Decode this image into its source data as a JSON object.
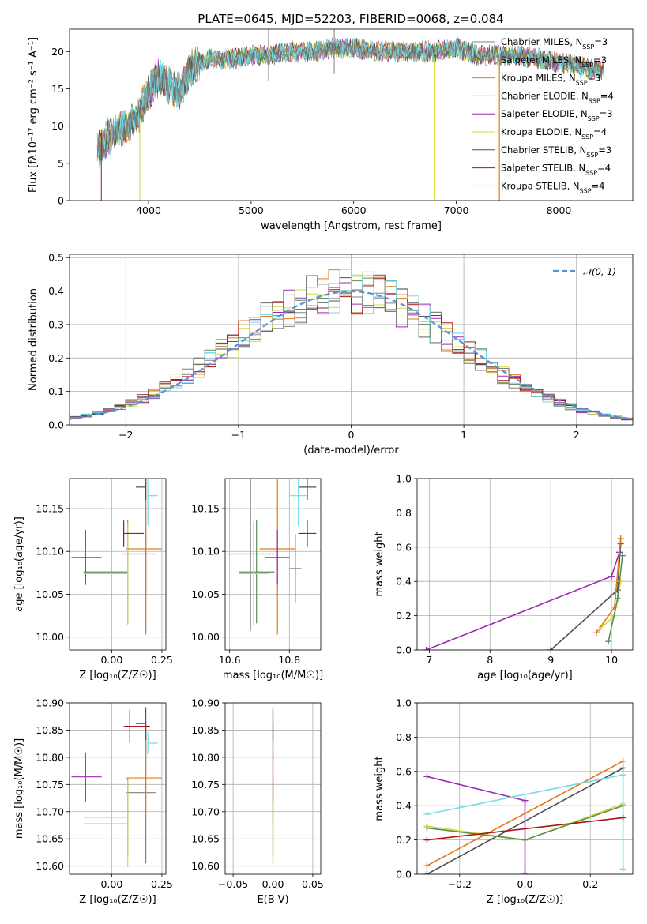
{
  "colors": [
    "#808080",
    "#808080",
    "#e07a20",
    "#5a8f5a",
    "#9b2bb0",
    "#d4dc3a",
    "#505050",
    "#aa1515",
    "#70dde6"
  ],
  "chart_data": [
    {
      "type": "line",
      "title": "PLATE=0645, MJD=52203, FIBERID=0068, z=0.084",
      "xlabel": "wavelength [Angstrom, rest frame]",
      "ylabel": "Flux [fλ10⁻¹⁷ erg cm⁻² s⁻¹ A⁻¹]",
      "xlim": [
        3230,
        8720
      ],
      "ylim": [
        0,
        23
      ],
      "xticks": [
        "4000",
        "5000",
        "6000",
        "7000",
        "8000"
      ],
      "yticks": [
        "0",
        "5",
        "10",
        "15",
        "20"
      ],
      "legend_position": "upper right",
      "legend": [
        "Chabrier MILES, N_SSP=3",
        "Salpeter MILES, N_SSP=3",
        "Kroupa MILES, N_SSP=3",
        "Chabrier ELODIE, N_SSP=4",
        "Salpeter ELODIE, N_SSP=3",
        "Kroupa ELODIE, N_SSP=4",
        "Chabrier STELIB, N_SSP=3",
        "Salpeter STELIB, N_SSP=4",
        "Kroupa STELIB, N_SSP=4"
      ],
      "spectrum_x": [
        3500,
        3600,
        3700,
        3800,
        3900,
        4000,
        4100,
        4200,
        4300,
        4400,
        4500,
        4600,
        4800,
        5000,
        5200,
        5400,
        5600,
        5800,
        6000,
        6200,
        6400,
        6600,
        6800,
        7000,
        7200,
        7400,
        7600,
        7800,
        8000,
        8200,
        8400
      ],
      "spectrum_y": [
        6.5,
        8.5,
        9.5,
        10,
        11.5,
        14.5,
        16.5,
        15.5,
        14.5,
        17.5,
        18.5,
        19,
        19,
        19.5,
        19.5,
        20,
        20,
        20.5,
        20.5,
        20,
        20,
        20,
        20,
        20.5,
        19.5,
        19.5,
        19.5,
        19,
        18.5,
        18,
        17.5
      ]
    },
    {
      "type": "bar",
      "xlabel": "(data-model)/error",
      "ylabel": "Normed distribution",
      "xlim": [
        -2.5,
        2.5
      ],
      "ylim": [
        0,
        0.51
      ],
      "xticks": [
        "−2",
        "−1",
        "0",
        "1",
        "2"
      ],
      "yticks": [
        "0.0",
        "0.1",
        "0.2",
        "0.3",
        "0.4",
        "0.5"
      ],
      "legend": [
        "𝒩(0, 1)"
      ],
      "bin_edges_start": -2.5,
      "bin_width": 0.1,
      "bin_count": 50
    },
    {
      "type": "scatter",
      "xlabel": "Z [log₁₀(Z/Z☉)]",
      "ylabel": "age  [log₁₀(age/yr)]",
      "xlim": [
        -0.21,
        0.27
      ],
      "ylim": [
        9.985,
        10.185
      ],
      "xticks": [
        "0.00",
        "0.25"
      ],
      "yticks": [
        "10.00",
        "10.05",
        "10.10",
        "10.15"
      ],
      "points": [
        {
          "x": 0.17,
          "xerr": [
            0.0,
            0.0
          ],
          "y": 10.09,
          "yerr": 0.04
        },
        {
          "x": 0.17,
          "xerr": [
            0.12,
            0.05
          ],
          "y": 10.097,
          "yerr": 0.09
        },
        {
          "x": 0.17,
          "xerr": [
            0.1,
            0.08
          ],
          "y": 10.103,
          "yerr": 0.1
        },
        {
          "x": 0.08,
          "xerr": [
            0.22,
            0.0
          ],
          "y": 10.076,
          "yerr": 0.06
        },
        {
          "x": -0.13,
          "xerr": [
            0.07,
            0.08
          ],
          "y": 10.093,
          "yerr": 0.032
        },
        {
          "x": 0.08,
          "xerr": [
            0.22,
            0.0
          ],
          "y": 10.074,
          "yerr": 0.06
        },
        {
          "x": 0.17,
          "xerr": [
            0.05,
            0.0
          ],
          "y": 10.175,
          "yerr": 0.015
        },
        {
          "x": 0.06,
          "xerr": [
            0.0,
            0.1
          ],
          "y": 10.121,
          "yerr": 0.015
        },
        {
          "x": 0.18,
          "xerr": [
            0.0,
            0.05
          ],
          "y": 10.165,
          "yerr": 0.035
        }
      ]
    },
    {
      "type": "scatter",
      "xlabel": "mass [log₁₀(M/M☉)]",
      "ylabel": "",
      "xlim": [
        10.585,
        10.905
      ],
      "ylim": [
        9.985,
        10.185
      ],
      "xticks": [
        "10.6",
        "10.8"
      ],
      "yticks": [
        "10.00",
        "10.05",
        "10.10",
        "10.15"
      ],
      "points": [
        {
          "x": 10.82,
          "xerr": 0.02,
          "y": 10.08,
          "yerr": 0.04
        },
        {
          "x": 10.67,
          "xerr": 0.08,
          "y": 10.097,
          "yerr": 0.09
        },
        {
          "x": 10.76,
          "xerr": 0.06,
          "y": 10.103,
          "yerr": 0.1
        },
        {
          "x": 10.69,
          "xerr": 0.06,
          "y": 10.076,
          "yerr": 0.06
        },
        {
          "x": 10.76,
          "xerr": 0.04,
          "y": 10.093,
          "yerr": 0.032
        },
        {
          "x": 10.68,
          "xerr": 0.05,
          "y": 10.074,
          "yerr": 0.06
        },
        {
          "x": 10.86,
          "xerr": 0.03,
          "y": 10.175,
          "yerr": 0.015
        },
        {
          "x": 10.86,
          "xerr": 0.03,
          "y": 10.121,
          "yerr": 0.015
        },
        {
          "x": 10.83,
          "xerr": 0.03,
          "y": 10.165,
          "yerr": 0.035
        }
      ]
    },
    {
      "type": "line",
      "xlabel": "age  [log₁₀(age/yr)]",
      "ylabel": "mass weight",
      "xlim": [
        6.8,
        10.35
      ],
      "ylim": [
        0,
        1.0
      ],
      "xticks": [
        "7",
        "8",
        "9",
        "10"
      ],
      "yticks": [
        "0.0",
        "0.2",
        "0.4",
        "0.6",
        "0.8",
        "1.0"
      ],
      "series": [
        {
          "x": [
            6.95,
            10.0,
            10.13
          ],
          "y": [
            0.0,
            0.43,
            0.57
          ]
        },
        {
          "x": [
            9.0,
            10.1,
            10.15
          ],
          "y": [
            0.0,
            0.35,
            0.62
          ]
        },
        {
          "x": [
            9.75,
            10.05,
            10.15
          ],
          "y": [
            0.1,
            0.25,
            0.65
          ]
        },
        {
          "x": [
            9.8,
            10.05,
            10.15
          ],
          "y": [
            0.12,
            0.2,
            0.4
          ]
        },
        {
          "x": [
            9.95,
            10.1,
            10.18
          ],
          "y": [
            0.05,
            0.3,
            0.55
          ]
        }
      ]
    },
    {
      "type": "scatter",
      "xlabel": "Z [log₁₀(Z/Z☉)]",
      "ylabel": "mass [log₁₀(M/M☉)]",
      "xlim": [
        -0.21,
        0.27
      ],
      "ylim": [
        10.585,
        10.9
      ],
      "xticks": [
        "0.00",
        "0.25"
      ],
      "yticks": [
        "10.60",
        "10.65",
        "10.70",
        "10.75",
        "10.80",
        "10.85",
        "10.90"
      ],
      "points": [
        {
          "x": 0.17,
          "xerr": [
            0.0,
            0.0
          ],
          "y": 10.82,
          "yerr": 0.02
        },
        {
          "x": 0.17,
          "xerr": [
            0.1,
            0.05
          ],
          "y": 10.735,
          "yerr": 0.13
        },
        {
          "x": 0.17,
          "xerr": [
            0.1,
            0.08
          ],
          "y": 10.762,
          "yerr": 0.08
        },
        {
          "x": 0.08,
          "xerr": [
            0.22,
            0.0
          ],
          "y": 10.69,
          "yerr": 0.07
        },
        {
          "x": -0.13,
          "xerr": [
            0.07,
            0.08
          ],
          "y": 10.764,
          "yerr": 0.045
        },
        {
          "x": 0.08,
          "xerr": [
            0.22,
            0.0
          ],
          "y": 10.678,
          "yerr": 0.08
        },
        {
          "x": 0.17,
          "xerr": [
            0.05,
            0.0
          ],
          "y": 10.862,
          "yerr": 0.03
        },
        {
          "x": 0.09,
          "xerr": [
            0.03,
            0.1
          ],
          "y": 10.857,
          "yerr": 0.03
        },
        {
          "x": 0.18,
          "xerr": [
            0.0,
            0.05
          ],
          "y": 10.826,
          "yerr": 0.02
        }
      ]
    },
    {
      "type": "scatter",
      "xlabel": "E(B-V)",
      "ylabel": "",
      "xlim": [
        -0.06,
        0.06
      ],
      "ylim": [
        10.585,
        10.9
      ],
      "xticks": [
        "−0.05",
        "0.00",
        "0.05"
      ],
      "yticks": [
        "10.60",
        "10.65",
        "10.70",
        "10.75",
        "10.80",
        "10.85",
        "10.90"
      ],
      "points": [
        {
          "x": 0.0,
          "y": 10.82,
          "yerr": 0.02
        },
        {
          "x": 0.0,
          "y": 10.735,
          "yerr": 0.13
        },
        {
          "x": 0.0,
          "y": 10.762,
          "yerr": 0.08
        },
        {
          "x": 0.0,
          "y": 10.69,
          "yerr": 0.07
        },
        {
          "x": 0.0,
          "y": 10.764,
          "yerr": 0.045
        },
        {
          "x": 0.0,
          "y": 10.678,
          "yerr": 0.08
        },
        {
          "x": 0.0,
          "y": 10.862,
          "yerr": 0.03
        },
        {
          "x": 0.0,
          "y": 10.857,
          "yerr": 0.03
        },
        {
          "x": 0.0,
          "y": 10.826,
          "yerr": 0.02
        }
      ]
    },
    {
      "type": "line",
      "xlabel": "Z [log₁₀(Z/Z☉)]",
      "ylabel": "mass weight",
      "xlim": [
        -0.33,
        0.33
      ],
      "ylim": [
        0,
        1.0
      ],
      "xticks": [
        "−0.2",
        "0.0",
        "0.2"
      ],
      "yticks": [
        "0.0",
        "0.2",
        "0.4",
        "0.6",
        "0.8",
        "1.0"
      ],
      "series": [
        {
          "x": [
            -0.3,
            0.0,
            0.0
          ],
          "y": [
            0.57,
            0.43,
            0.0
          ]
        },
        {
          "x": [
            -0.3,
            0.3
          ],
          "y": [
            0.0,
            0.62
          ]
        },
        {
          "x": [
            -0.3,
            0.3
          ],
          "y": [
            0.05,
            0.66
          ]
        },
        {
          "x": [
            -0.3,
            0.0,
            0.3
          ],
          "y": [
            0.28,
            0.2,
            0.41
          ]
        },
        {
          "x": [
            -0.3,
            0.0,
            0.3
          ],
          "y": [
            0.27,
            0.2,
            0.4
          ]
        },
        {
          "x": [
            -0.3,
            0.3,
            0.3
          ],
          "y": [
            0.35,
            0.58,
            0.03
          ]
        },
        {
          "x": [
            -0.3,
            0.3
          ],
          "y": [
            0.2,
            0.33
          ]
        }
      ]
    }
  ]
}
